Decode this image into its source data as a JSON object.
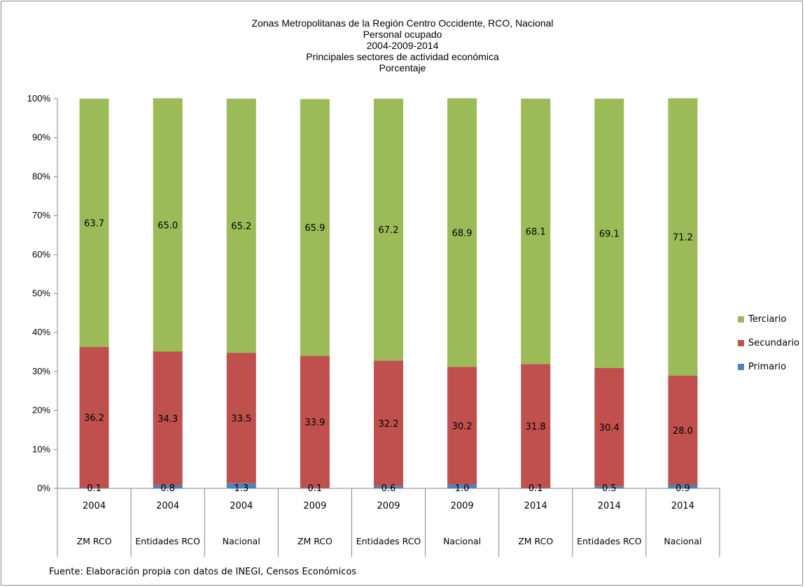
{
  "chart_data": {
    "type": "bar",
    "stacked": true,
    "percent_scale": true,
    "title_lines": [
      "Zonas Metropolitanas de la Región Centro Occidente, RCO, Nacional",
      "Personal ocupado",
      "2004-2009-2014",
      "Principales sectores de actividad económica",
      "Porcentaje"
    ],
    "categories": [
      {
        "year": "2004",
        "group": "ZM RCO"
      },
      {
        "year": "2004",
        "group": "Entidades RCO"
      },
      {
        "year": "2004",
        "group": "Nacional"
      },
      {
        "year": "2009",
        "group": "ZM RCO"
      },
      {
        "year": "2009",
        "group": "Entidades RCO"
      },
      {
        "year": "2009",
        "group": "Nacional"
      },
      {
        "year": "2014",
        "group": "ZM RCO"
      },
      {
        "year": "2014",
        "group": "Entidades RCO"
      },
      {
        "year": "2014",
        "group": "Nacional"
      }
    ],
    "series": [
      {
        "name": "Primario",
        "color": "#4f81bd",
        "values": [
          0.1,
          0.8,
          1.3,
          0.1,
          0.6,
          1.0,
          0.1,
          0.5,
          0.9
        ],
        "labels": [
          "0.1",
          "0.8",
          "1.3",
          "0.1",
          "0.6",
          "1.0",
          "0.1",
          "0.5",
          "0.9"
        ]
      },
      {
        "name": "Secundario",
        "color": "#c0504d",
        "values": [
          36.2,
          34.3,
          33.5,
          33.9,
          32.2,
          30.2,
          31.8,
          30.4,
          28.0
        ],
        "labels": [
          "36.2",
          "34.3",
          "33.5",
          "33.9",
          "32.2",
          "30.2",
          "31.8",
          "30.4",
          "28.0"
        ]
      },
      {
        "name": "Terciario",
        "color": "#9bbb59",
        "values": [
          63.7,
          65.0,
          65.2,
          65.9,
          67.2,
          68.9,
          68.1,
          69.1,
          71.2
        ],
        "labels": [
          "63.7",
          "65.0",
          "65.2",
          "65.9",
          "67.2",
          "68.9",
          "68.1",
          "69.1",
          "71.2"
        ]
      }
    ],
    "yticks": [
      "0%",
      "10%",
      "20%",
      "30%",
      "40%",
      "50%",
      "60%",
      "70%",
      "80%",
      "90%",
      "100%"
    ],
    "ylim": [
      0,
      100
    ],
    "legend": {
      "position": "right",
      "order": [
        "Terciario",
        "Secundario",
        "Primario"
      ]
    },
    "grid": false
  },
  "source_note": "Fuente: Elaboración propia  con datos de INEGI, Censos Económicos"
}
